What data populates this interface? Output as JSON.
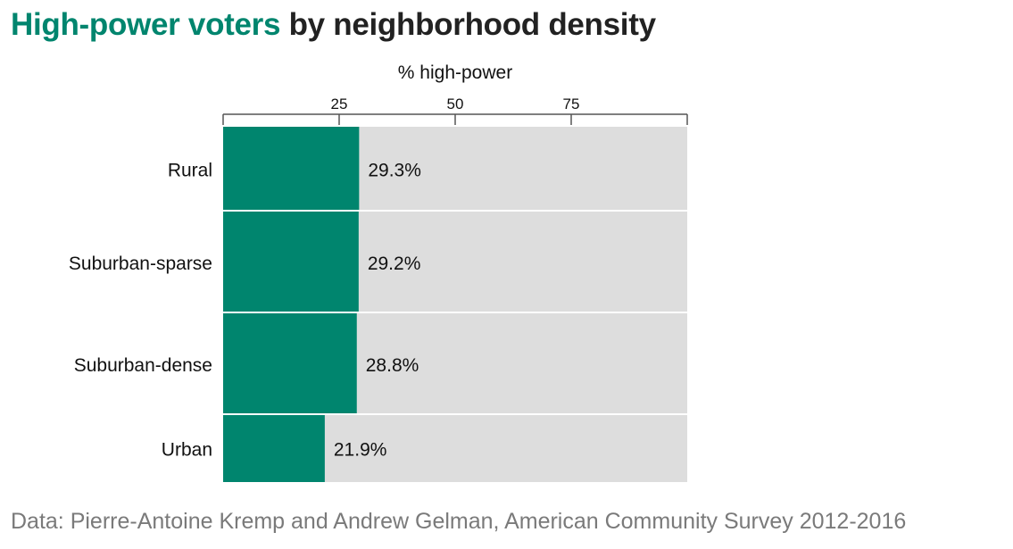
{
  "title": {
    "highlight": "High-power voters",
    "rest": " by neighborhood density"
  },
  "colors": {
    "bar": "#00856e",
    "track": "#dddddd",
    "title_accent": "#00856e",
    "source": "#7a7a7a"
  },
  "chart_data": {
    "type": "bar",
    "orientation": "horizontal",
    "xlabel": "% high-power",
    "xlim": [
      0,
      100
    ],
    "xticks": [
      25,
      50,
      75
    ],
    "categories": [
      "Rural",
      "Suburban-sparse",
      "Suburban-dense",
      "Urban"
    ],
    "values": [
      29.3,
      29.2,
      28.8,
      21.9
    ],
    "value_labels": [
      "29.3%",
      "29.2%",
      "28.8%",
      "21.9%"
    ],
    "axis_position": "top",
    "grid": false
  },
  "source": "Data: Pierre-Antoine Kremp and Andrew Gelman, American Community Survey 2012-2016"
}
